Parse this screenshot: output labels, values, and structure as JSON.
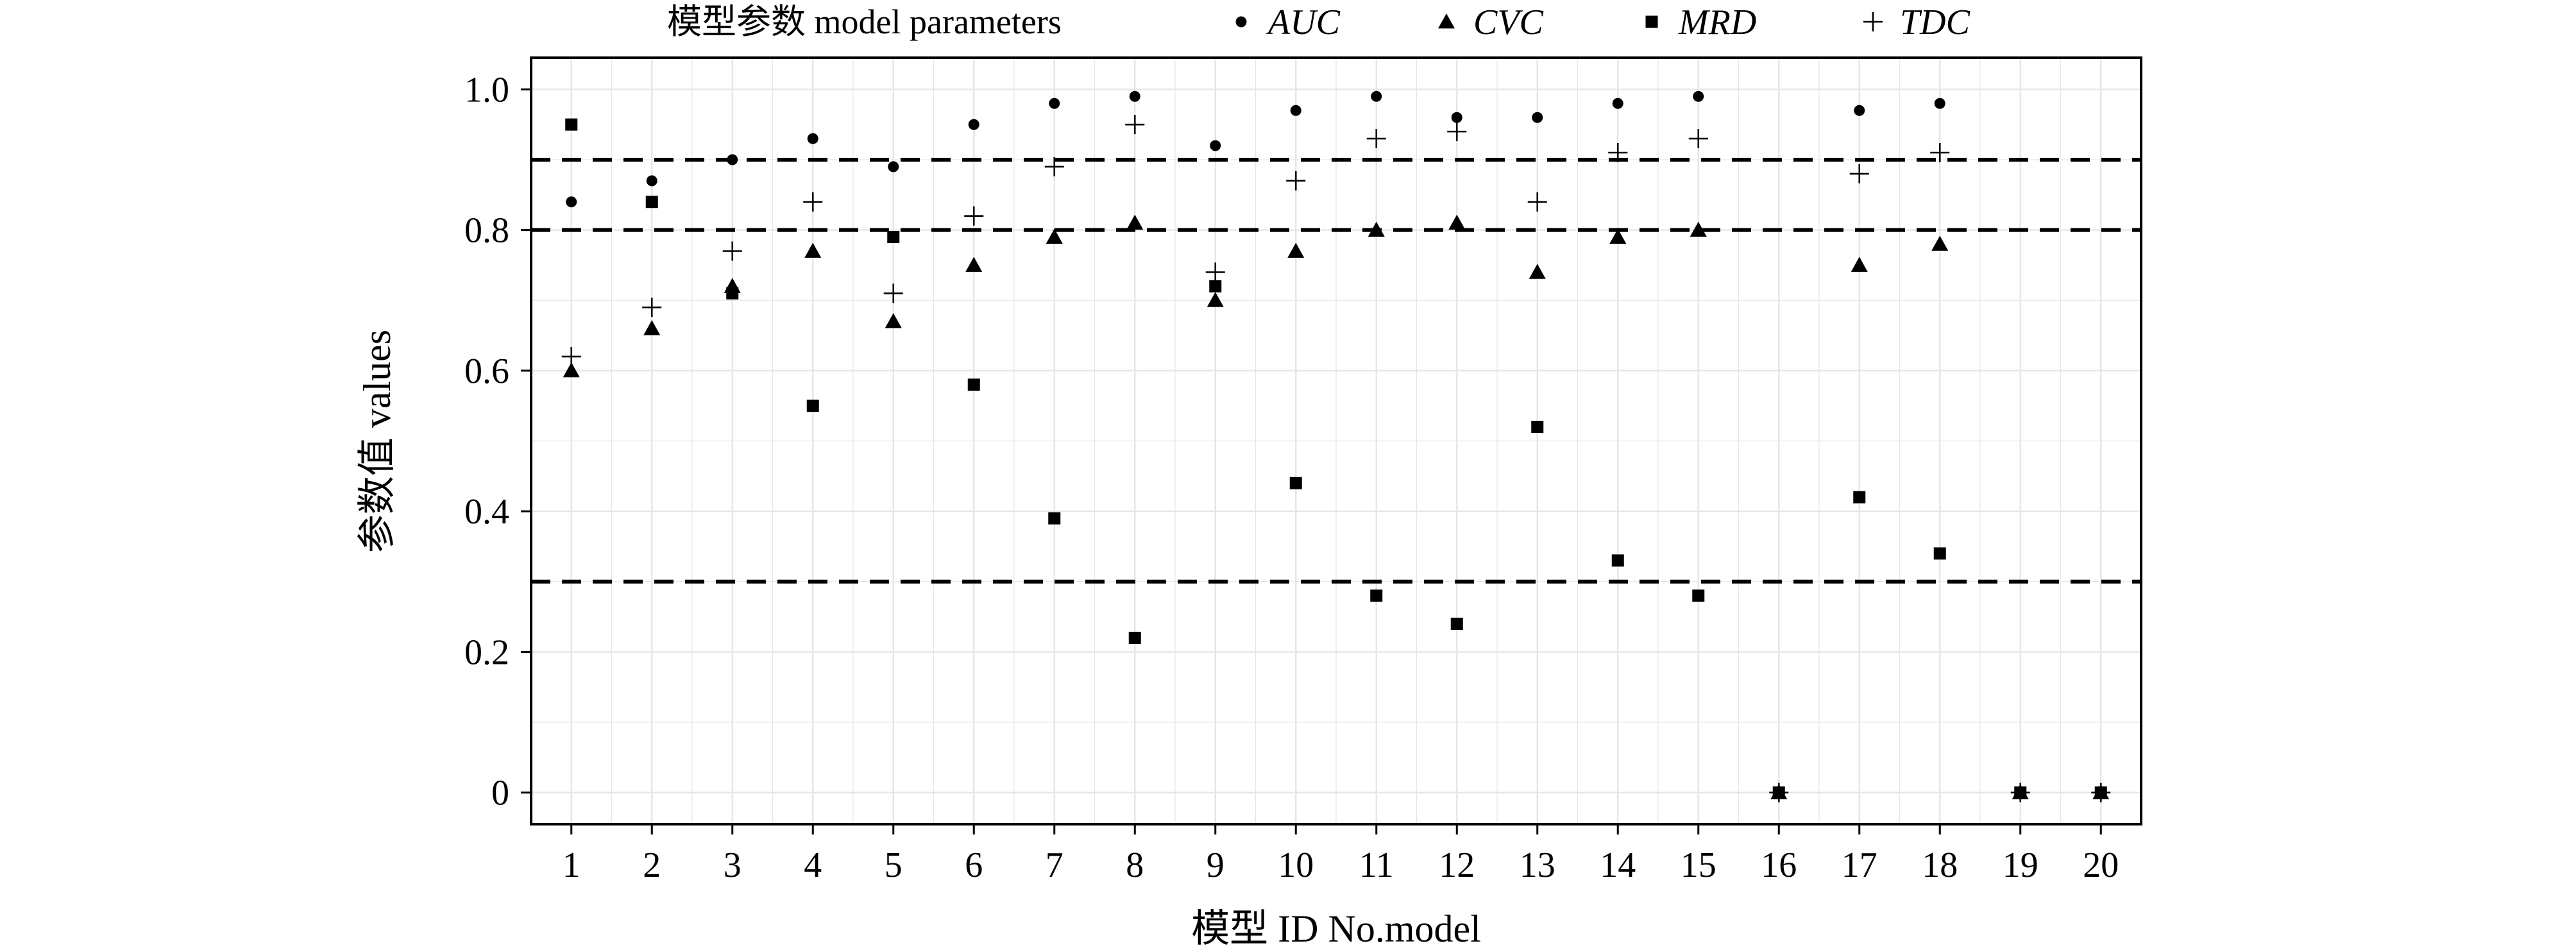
{
  "chart_data": {
    "type": "scatter",
    "legend_title": "模型参数 model parameters",
    "legend_position": "top",
    "xlabel": "模型 ID No.model",
    "ylabel": "参数值 values",
    "categories": [
      "1",
      "2",
      "3",
      "4",
      "5",
      "6",
      "7",
      "8",
      "9",
      "10",
      "11",
      "12",
      "13",
      "14",
      "15",
      "16",
      "17",
      "18",
      "19",
      "20"
    ],
    "yticks": [
      "0",
      "0.2",
      "0.4",
      "0.6",
      "0.8",
      "1.0"
    ],
    "ytick_values": [
      0,
      0.2,
      0.4,
      0.6,
      0.8,
      1.0
    ],
    "ylim": [
      -0.045,
      1.045
    ],
    "grid": true,
    "reference_lines": [
      0.9,
      0.8,
      0.3
    ],
    "series": [
      {
        "name": "AUC",
        "marker": "circle",
        "values": [
          0.84,
          0.87,
          0.9,
          0.93,
          0.89,
          0.95,
          0.98,
          0.99,
          0.92,
          0.97,
          0.99,
          0.96,
          0.96,
          0.98,
          0.99,
          0,
          0.97,
          0.98,
          0,
          0
        ]
      },
      {
        "name": "CVC",
        "marker": "triangle",
        "values": [
          0.6,
          0.66,
          0.72,
          0.77,
          0.67,
          0.75,
          0.79,
          0.81,
          0.7,
          0.77,
          0.8,
          0.81,
          0.74,
          0.79,
          0.8,
          0,
          0.75,
          0.78,
          0,
          0
        ]
      },
      {
        "name": "MRD",
        "marker": "square",
        "values": [
          0.95,
          0.84,
          0.71,
          0.55,
          0.79,
          0.58,
          0.39,
          0.22,
          0.72,
          0.44,
          0.28,
          0.24,
          0.52,
          0.33,
          0.28,
          0,
          0.42,
          0.34,
          0,
          0
        ]
      },
      {
        "name": "TDC",
        "marker": "plus",
        "values": [
          0.62,
          0.69,
          0.77,
          0.84,
          0.71,
          0.82,
          0.89,
          0.95,
          0.74,
          0.87,
          0.93,
          0.94,
          0.84,
          0.91,
          0.93,
          0,
          0.88,
          0.91,
          0,
          0
        ]
      }
    ],
    "colors": {
      "marker": "#000000",
      "grid": "#e6e6e6",
      "axis": "#000000"
    }
  }
}
